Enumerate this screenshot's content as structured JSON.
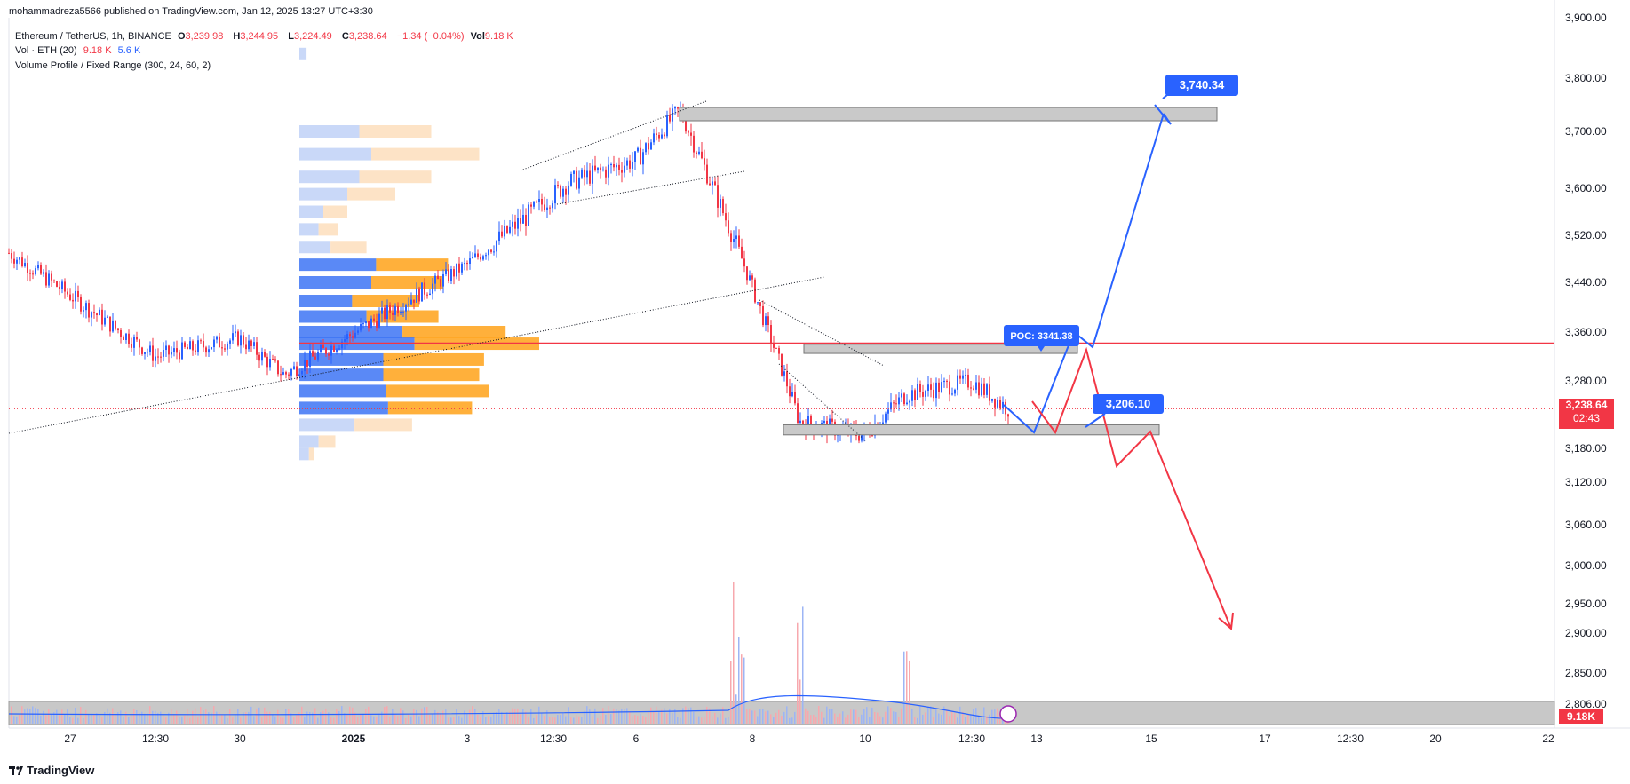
{
  "publisher_line": "mohammadreza5566 published on TradingView.com, Jan 12, 2025 13:27 UTC+3:30",
  "symbol": {
    "name": "Ethereum / TetherUS, 1h, BINANCE",
    "o_label": "O",
    "o": "3,239.98",
    "h_label": "H",
    "h": "3,244.95",
    "l_label": "L",
    "l": "3,224.49",
    "c_label": "C",
    "c": "3,238.64",
    "change": "−1.34 (−0.04%)",
    "vol_label": "Vol",
    "vol": "9.18 K"
  },
  "indicators": {
    "volume": {
      "label": "Vol · ETH (20)",
      "v1": "9.18 K",
      "v2": "5.6 K"
    },
    "volume_profile": "Volume Profile / Fixed Range (300, 24, 60, 2)"
  },
  "brand": "TradingView",
  "colors": {
    "up": "#2962ff",
    "down": "#f23645",
    "vp_up": "#5b8bf5",
    "vp_down": "#ffa726",
    "poc": "#f23645"
  },
  "chart_data": {
    "type": "line",
    "title": "Ethereum / TetherUS, 1h, BINANCE",
    "x_ticks": [
      "27",
      "12:30",
      "30",
      "2025",
      "3",
      "12:30",
      "6",
      "8",
      "10",
      "12:30",
      "13",
      "15",
      "17",
      "12:30",
      "20",
      "22"
    ],
    "y_ticks": [
      3900,
      3800,
      3700,
      3600,
      3520,
      3440,
      3360,
      3280,
      3180,
      3120,
      3060,
      3000,
      2950,
      2900,
      2850,
      2806
    ],
    "y_tick_labels": [
      "3,900.00",
      "3,800.00",
      "3,700.00",
      "3,600.00",
      "3,520.00",
      "3,440.00",
      "3,360.00",
      "3,280.00",
      "3,180.00",
      "3,120.00",
      "3,060.00",
      "3,000.00",
      "2,950.00",
      "2,900.00",
      "2,850.00",
      "2,806.00"
    ],
    "y_scale": "log",
    "series": [
      {
        "kind": "price",
        "x": [
          "27",
          "12:30",
          "30",
          "2025",
          "3",
          "12:30",
          "6",
          "7",
          "8",
          "9",
          "10",
          "11",
          "12:30",
          "12"
        ],
        "y": [
          3490,
          3320,
          3350,
          3290,
          3470,
          3610,
          3650,
          3740,
          3500,
          3220,
          3200,
          3260,
          3280,
          3238.64
        ]
      }
    ],
    "current_price": "3,238.64",
    "countdown": "02:43",
    "current_volume": "9.18K",
    "poc": {
      "label": "POC: 3341.38",
      "value": 3341.38
    },
    "annotations": [
      {
        "label": "3,740.34",
        "value": 3740.34
      },
      {
        "label": "3,206.10",
        "value": 3206.1
      }
    ],
    "zones": [
      {
        "low": 3720,
        "high": 3745
      },
      {
        "low": 3325,
        "high": 3340
      },
      {
        "low": 3200,
        "high": 3215
      }
    ],
    "projections": [
      {
        "color": "blue",
        "path": [
          3260,
          3206,
          3341,
          3740
        ]
      },
      {
        "color": "red",
        "path": [
          3260,
          3210,
          3340,
          3140,
          3200,
          2900
        ]
      }
    ],
    "volume_profile": [
      {
        "price": 3840,
        "up": 0.03,
        "down": 0.0
      },
      {
        "price": 3700,
        "up": 0.25,
        "down": 0.3
      },
      {
        "price": 3660,
        "up": 0.3,
        "down": 0.45
      },
      {
        "price": 3620,
        "up": 0.25,
        "down": 0.3
      },
      {
        "price": 3590,
        "up": 0.2,
        "down": 0.2
      },
      {
        "price": 3560,
        "up": 0.1,
        "down": 0.1
      },
      {
        "price": 3530,
        "up": 0.08,
        "down": 0.08
      },
      {
        "price": 3500,
        "up": 0.13,
        "down": 0.15
      },
      {
        "price": 3470,
        "up": 0.32,
        "down": 0.3
      },
      {
        "price": 3440,
        "up": 0.3,
        "down": 0.3
      },
      {
        "price": 3410,
        "up": 0.22,
        "down": 0.28
      },
      {
        "price": 3385,
        "up": 0.28,
        "down": 0.3
      },
      {
        "price": 3360,
        "up": 0.43,
        "down": 0.43
      },
      {
        "price": 3341,
        "up": 0.48,
        "down": 0.52
      },
      {
        "price": 3315,
        "up": 0.35,
        "down": 0.42
      },
      {
        "price": 3290,
        "up": 0.35,
        "down": 0.4
      },
      {
        "price": 3265,
        "up": 0.36,
        "down": 0.43
      },
      {
        "price": 3240,
        "up": 0.37,
        "down": 0.35
      },
      {
        "price": 3215,
        "up": 0.23,
        "down": 0.24
      },
      {
        "price": 3190,
        "up": 0.08,
        "down": 0.07
      },
      {
        "price": 3170,
        "up": 0.04,
        "down": 0.02
      }
    ],
    "grid": false
  }
}
